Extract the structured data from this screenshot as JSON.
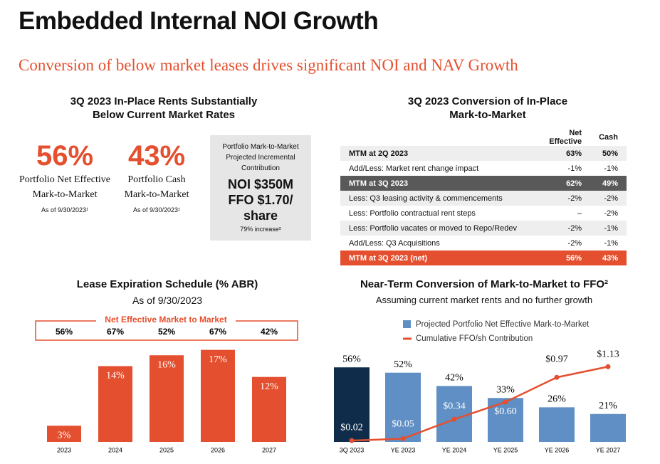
{
  "header": {
    "title": "Embedded Internal NOI Growth",
    "subtitle": "Conversion of below market leases drives significant NOI and NAV Growth"
  },
  "rents": {
    "title": "3Q 2023 In-Place Rents Substantially Below Current Market Rates",
    "stats": [
      {
        "value": "56%",
        "label": "Portfolio Net Effective Mark-to-Market",
        "note": "As of 9/30/2023¹"
      },
      {
        "value": "43%",
        "label": "Portfolio Cash Mark-to-Market",
        "note": "As of 9/30/2023¹"
      }
    ],
    "box": {
      "caption": "Portfolio Mark-to-Market Projected Incremental Contribution",
      "noi": "NOI $350M",
      "ffo": "FFO $1.70/ share",
      "note": "79% increase²"
    }
  },
  "mtm_table": {
    "title": "3Q 2023 Conversion of In-Place Mark-to-Market",
    "columns": [
      "Net Effective",
      "Cash"
    ],
    "rows": [
      [
        "MTM at 2Q 2023",
        "63%",
        "50%"
      ],
      [
        "Add/Less: Market rent change impact",
        "-1%",
        "-1%"
      ],
      [
        "MTM at 3Q 2023",
        "62%",
        "49%"
      ],
      [
        "Less: Q3 leasing activity & commencements",
        "-2%",
        "-2%"
      ],
      [
        "Less: Portfolio contractual rent steps",
        "–",
        "-2%"
      ],
      [
        "Less: Portfolio vacates or moved to Repo/Redev",
        "-2%",
        "-1%"
      ],
      [
        "Add/Less: Q3 Acquisitions",
        "-2%",
        "-1%"
      ],
      [
        "MTM at 3Q 2023 (net)",
        "56%",
        "43%"
      ]
    ]
  },
  "chart_data": [
    {
      "type": "bar",
      "title": "Lease Expiration Schedule (% ABR)",
      "subtitle": "As of 9/30/2023",
      "categories": [
        "2023",
        "2024",
        "2025",
        "2026",
        "2027"
      ],
      "values": [
        3,
        14,
        16,
        17,
        12
      ],
      "value_labels": [
        "3%",
        "14%",
        "16%",
        "17%",
        "12%"
      ],
      "color": "#e4502f",
      "ylim": [
        0,
        18
      ],
      "mtm_row": {
        "title": "Net Effective Market to Market",
        "labels": [
          "56%",
          "67%",
          "52%",
          "67%",
          "42%"
        ]
      }
    },
    {
      "type": "bar",
      "title": "Near-Term Conversion of Mark-to-Market to FFO²",
      "subtitle": "Assuming current market rents and no further growth",
      "categories": [
        "3Q 2023",
        "YE 2023",
        "YE 2024",
        "YE 2025",
        "YE 2026",
        "YE 2027"
      ],
      "series": [
        {
          "name": "Projected Portfolio Net Effective Mark-to-Market",
          "type": "bar",
          "color": "#5f8fc4",
          "colors": [
            "#0f2d4b",
            "#5f8fc4",
            "#5f8fc4",
            "#5f8fc4",
            "#5f8fc4",
            "#5f8fc4"
          ],
          "values": [
            56,
            52,
            42,
            33,
            26,
            21
          ],
          "value_labels": [
            "56%",
            "52%",
            "42%",
            "33%",
            "26%",
            "21%"
          ]
        },
        {
          "name": "Cumulative FFO/sh Contribution",
          "type": "line",
          "axis": "y2",
          "color": "#e4502f",
          "values": [
            0.02,
            0.05,
            0.34,
            0.6,
            0.97,
            1.13
          ],
          "value_labels": [
            "$0.02",
            "$0.05",
            "$0.34",
            "$0.60",
            "$0.97",
            "$1.13"
          ]
        }
      ],
      "ylim": [
        0,
        70
      ],
      "y2lim": [
        0,
        1.4
      ]
    }
  ]
}
